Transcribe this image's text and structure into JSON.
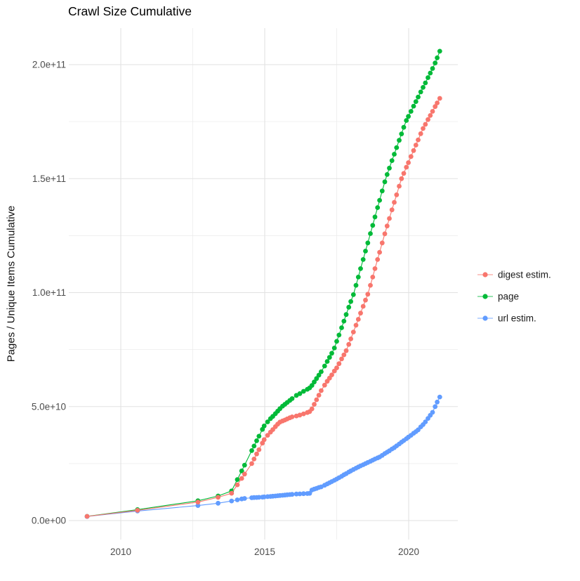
{
  "title": "Crawl Size Cumulative",
  "y_axis_title": "Pages / Unique Items Cumulative",
  "legend": {
    "items": [
      {
        "label": "digest estim.",
        "color": "#F8766D"
      },
      {
        "label": "page",
        "color": "#00BA38"
      },
      {
        "label": "url estim.",
        "color": "#619CFF"
      }
    ]
  },
  "colors": {
    "digest": "#F8766D",
    "page": "#00BA38",
    "url": "#619CFF",
    "grid_major": "#E2E2E2",
    "grid_minor": "#ECECEC",
    "axis_text": "#4D4D4D",
    "title_text": "#000000"
  },
  "chart_data": {
    "type": "scatter",
    "note": "cumulative crawl size over time; points connected by thin lines; values in billions (1e9) of pages / unique items",
    "value_unit": 1000000000.0,
    "x_axis": {
      "ticks": [
        {
          "label": "2010",
          "value": 2010
        },
        {
          "label": "2015",
          "value": 2015
        },
        {
          "label": "2020",
          "value": 2020
        }
      ],
      "minor_ticks": [
        2012.5,
        2017.5
      ],
      "range_years": [
        2008.2,
        2021.7
      ]
    },
    "y_axis": {
      "ticks": [
        {
          "label": "0.0e+00",
          "value": 0
        },
        {
          "label": "5.0e+10",
          "value": 50
        },
        {
          "label": "1.0e+11",
          "value": 100
        },
        {
          "label": "1.5e+11",
          "value": 150
        },
        {
          "label": "2.0e+11",
          "value": 200
        }
      ],
      "minor_ticks": [
        25,
        75,
        125,
        175
      ],
      "range_billions": [
        -10,
        215
      ]
    },
    "x": [
      2008.83,
      2010.58,
      2012.68,
      2013.38,
      2013.85,
      2014.05,
      2014.2,
      2014.3,
      2014.55,
      2014.63,
      2014.72,
      2014.8,
      2014.92,
      2014.98,
      2015.1,
      2015.2,
      2015.28,
      2015.37,
      2015.45,
      2015.53,
      2015.62,
      2015.7,
      2015.78,
      2015.87,
      2015.95,
      2016.1,
      2016.22,
      2016.35,
      2016.48,
      2016.56,
      2016.64,
      2016.72,
      2016.8,
      2016.88,
      2016.96,
      2017.08,
      2017.17,
      2017.25,
      2017.33,
      2017.42,
      2017.5,
      2017.58,
      2017.67,
      2017.75,
      2017.83,
      2017.92,
      2017.99,
      2018.08,
      2018.17,
      2018.25,
      2018.33,
      2018.42,
      2018.5,
      2018.58,
      2018.67,
      2018.75,
      2018.83,
      2018.92,
      2018.99,
      2019.08,
      2019.17,
      2019.25,
      2019.33,
      2019.42,
      2019.5,
      2019.58,
      2019.67,
      2019.75,
      2019.83,
      2019.92,
      2019.99,
      2020.08,
      2020.17,
      2020.25,
      2020.33,
      2020.42,
      2020.5,
      2020.58,
      2020.67,
      2020.75,
      2020.83,
      2020.92,
      2020.99,
      2021.08
    ],
    "series": [
      {
        "name": "page",
        "color": "#00BA38",
        "values": [
          1.85,
          4.8,
          8.7,
          10.8,
          13.0,
          18.0,
          21.8,
          24.3,
          30.7,
          32.7,
          35.0,
          37.0,
          40.0,
          41.5,
          43.3,
          44.7,
          45.7,
          46.9,
          48.0,
          49.1,
          50.2,
          51.0,
          51.8,
          52.7,
          53.5,
          54.9,
          55.7,
          56.7,
          57.6,
          58.2,
          59.3,
          60.8,
          62.3,
          63.8,
          65.3,
          67.8,
          69.8,
          71.6,
          73.4,
          75.7,
          78.6,
          81.4,
          84.6,
          87.5,
          90.4,
          93.6,
          96.1,
          99.1,
          103.2,
          106.8,
          110.5,
          114.5,
          118.2,
          121.8,
          125.9,
          129.5,
          133.2,
          137.3,
          140.5,
          144.6,
          148.6,
          151.8,
          154.6,
          157.9,
          160.7,
          163.6,
          166.8,
          169.6,
          172.5,
          175.5,
          177.3,
          179.5,
          181.8,
          183.8,
          185.8,
          188.0,
          190.0,
          192.0,
          194.3,
          196.3,
          198.3,
          200.7,
          203.0,
          205.9
        ]
      },
      {
        "name": "url estim.",
        "color": "#619CFF",
        "values": [
          1.8,
          4.2,
          6.6,
          7.6,
          8.6,
          9.1,
          9.5,
          9.7,
          10.0,
          10.1,
          10.15,
          10.2,
          10.3,
          10.4,
          10.5,
          10.6,
          10.7,
          10.8,
          10.9,
          11.0,
          11.1,
          11.2,
          11.3,
          11.4,
          11.5,
          11.65,
          11.7,
          11.8,
          11.85,
          11.95,
          13.4,
          13.8,
          14.1,
          14.5,
          14.8,
          15.5,
          16.1,
          16.6,
          17.1,
          17.7,
          18.2,
          18.8,
          19.4,
          20.1,
          20.6,
          21.3,
          21.8,
          22.4,
          23.0,
          23.5,
          24.0,
          24.5,
          25.0,
          25.5,
          26.0,
          26.5,
          27.0,
          27.5,
          27.9,
          28.6,
          29.4,
          30.0,
          30.6,
          31.4,
          32.0,
          32.8,
          33.6,
          34.4,
          35.1,
          35.9,
          36.6,
          37.4,
          38.3,
          39.0,
          39.8,
          41.1,
          42.1,
          43.3,
          44.8,
          46.2,
          47.5,
          50.0,
          52.0,
          54.2
        ]
      },
      {
        "name": "digest estim.",
        "color": "#F8766D",
        "values": [
          1.85,
          4.5,
          8.1,
          10.2,
          12.0,
          15.7,
          18.5,
          20.4,
          25.0,
          27.0,
          29.2,
          31.1,
          34.0,
          35.5,
          37.4,
          38.8,
          39.9,
          41.2,
          42.3,
          43.2,
          43.7,
          44.1,
          44.6,
          45.1,
          45.5,
          45.9,
          46.3,
          46.8,
          47.4,
          47.8,
          49.0,
          51.0,
          53.0,
          55.0,
          57.0,
          59.4,
          61.1,
          62.5,
          63.9,
          65.6,
          67.0,
          68.8,
          70.9,
          72.7,
          74.5,
          77.3,
          79.7,
          82.7,
          85.7,
          88.3,
          91.0,
          94.0,
          96.7,
          99.3,
          103.2,
          106.8,
          110.5,
          114.5,
          117.7,
          121.8,
          125.8,
          129.2,
          132.5,
          136.3,
          139.6,
          142.9,
          146.7,
          150.0,
          152.3,
          155.0,
          157.0,
          159.7,
          162.3,
          164.7,
          167.0,
          169.7,
          172.0,
          173.8,
          175.9,
          177.7,
          179.5,
          181.6,
          183.2,
          185.2
        ]
      }
    ],
    "legend_position": "right",
    "grid": true
  }
}
